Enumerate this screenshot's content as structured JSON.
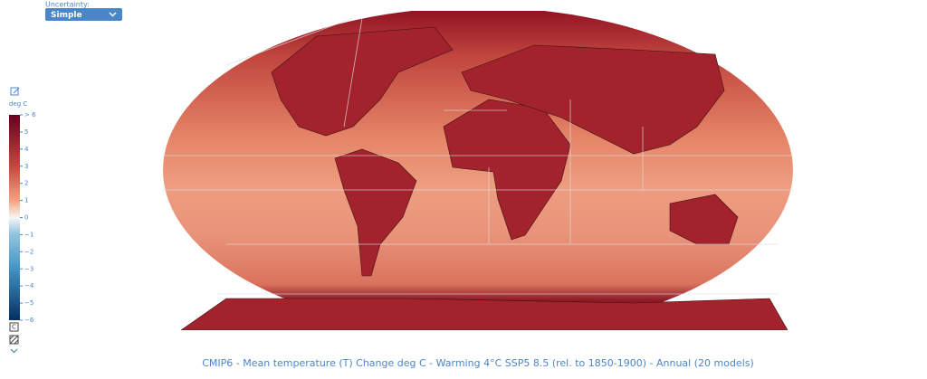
{
  "header": {
    "uncertainty_label": "Uncertainty:",
    "uncertainty_value": "Simple"
  },
  "colorbar": {
    "unit": "deg C",
    "lim": [
      -6,
      6
    ],
    "ticks": [
      {
        "value": 6,
        "label": "> 6"
      },
      5,
      4,
      3,
      2,
      1,
      0,
      {
        "value": -1,
        "label": "−1"
      },
      {
        "value": -2,
        "label": "−2"
      },
      {
        "value": -3,
        "label": "−3"
      },
      {
        "value": -4,
        "label": "−4"
      },
      {
        "value": -5,
        "label": "−5"
      },
      {
        "value": -6,
        "label": "−6"
      }
    ]
  },
  "caption": "CMIP6 - Mean temperature (T) Change deg C - Warming 4°C SSP5 8.5 (rel. to 1850-1900) - Annual (20 models)"
}
